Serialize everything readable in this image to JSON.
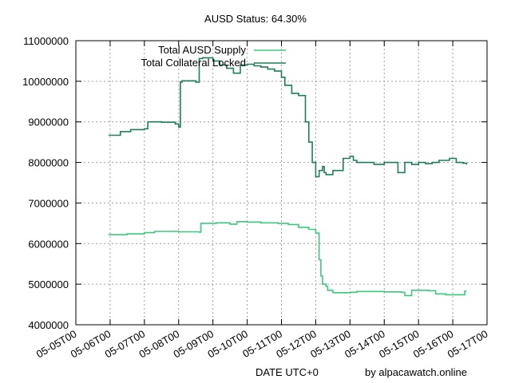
{
  "title": "AUSD Status: 64.30%",
  "credit": "by alpacawatch.online",
  "colors": {
    "supply": "#3cc87d",
    "collateral": "#1e7f56",
    "grid": "#a0a0a0"
  },
  "chart_data": {
    "type": "line",
    "title": "AUSD Status: 64.30%",
    "xlabel": "DATE UTC+0",
    "ylabel": "",
    "grid": true,
    "legend_position": "top-left",
    "ylim": [
      4000000,
      11000000
    ],
    "xlim": [
      0,
      12
    ],
    "y_ticks": [
      "4000000",
      "5000000",
      "6000000",
      "7000000",
      "8000000",
      "9000000",
      "10000000",
      "11000000"
    ],
    "x_ticks": [
      "05-05T00",
      "05-06T00",
      "05-07T00",
      "05-08T00",
      "05-09T00",
      "05-10T00",
      "05-11T00",
      "05-12T00",
      "05-13T00",
      "05-14T00",
      "05-15T00",
      "05-16T00",
      "05-17T00"
    ],
    "x_unit": "days since 05-05T00",
    "series": [
      {
        "name": "Total AUSD Supply",
        "color": "#3cc87d",
        "x": [
          0.95,
          1.4,
          1.5,
          2.0,
          2.3,
          3.0,
          3.6,
          3.65,
          4.1,
          4.5,
          4.7,
          5.0,
          5.4,
          5.9,
          6.2,
          6.5,
          6.8,
          7.0,
          7.1,
          7.15,
          7.2,
          7.3,
          7.35,
          7.5,
          7.7,
          8.0,
          8.2,
          8.5,
          9.0,
          9.5,
          9.6,
          9.8,
          10.3,
          10.5,
          10.8,
          11.2,
          11.35,
          11.4
        ],
        "values": [
          6220000,
          6220000,
          6240000,
          6270000,
          6300000,
          6290000,
          6280000,
          6500000,
          6510000,
          6480000,
          6540000,
          6530000,
          6510000,
          6500000,
          6470000,
          6400000,
          6350000,
          6260000,
          5600000,
          5200000,
          5000000,
          4950000,
          4850000,
          4790000,
          4790000,
          4800000,
          4820000,
          4820000,
          4810000,
          4800000,
          4720000,
          4850000,
          4840000,
          4760000,
          4740000,
          4740000,
          4830000,
          4830000
        ]
      },
      {
        "name": "Total Collateral Locked",
        "color": "#1e7f56",
        "x": [
          0.95,
          1.2,
          1.3,
          1.6,
          2.0,
          2.1,
          2.5,
          2.9,
          3.0,
          3.05,
          3.1,
          3.5,
          3.6,
          3.7,
          4.0,
          4.2,
          4.4,
          4.6,
          4.8,
          5.0,
          5.2,
          5.4,
          5.6,
          5.8,
          6.0,
          6.1,
          6.3,
          6.5,
          6.7,
          6.8,
          6.9,
          7.0,
          7.1,
          7.2,
          7.25,
          7.3,
          7.5,
          7.8,
          8.0,
          8.1,
          8.2,
          8.5,
          8.7,
          9.0,
          9.4,
          9.6,
          9.8,
          10.0,
          10.2,
          10.4,
          10.6,
          10.9,
          11.1,
          11.3,
          11.4
        ],
        "values": [
          8670000,
          8670000,
          8760000,
          8810000,
          8830000,
          9000000,
          8990000,
          8950000,
          8870000,
          9980000,
          10010000,
          9980000,
          10560000,
          10580000,
          10500000,
          10400000,
          10320000,
          10200000,
          10400000,
          10420000,
          10380000,
          10350000,
          10300000,
          10250000,
          10100000,
          9900000,
          9700000,
          9650000,
          9000000,
          8500000,
          8000000,
          7650000,
          7800000,
          7900000,
          7750000,
          7700000,
          7800000,
          8100000,
          8150000,
          8050000,
          8000000,
          8000000,
          7950000,
          8000000,
          7750000,
          8000000,
          7950000,
          8000000,
          7970000,
          8000000,
          8050000,
          8100000,
          8000000,
          7980000,
          7950000
        ]
      }
    ]
  }
}
